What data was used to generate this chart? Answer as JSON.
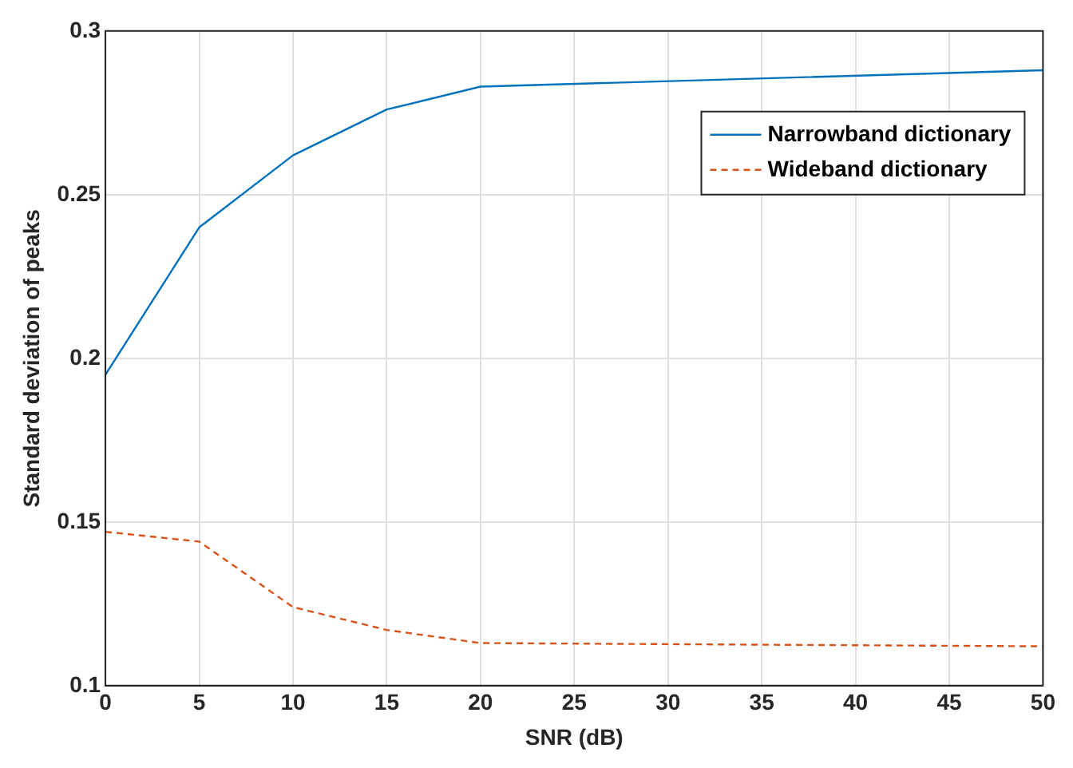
{
  "chart_data": {
    "type": "line",
    "xlabel": "SNR (dB)",
    "ylabel": "Standard deviation of peaks",
    "xlim": [
      0,
      50
    ],
    "xticks": [
      0,
      5,
      10,
      15,
      20,
      25,
      30,
      35,
      40,
      45,
      50
    ],
    "ylim": [
      0.1,
      0.3
    ],
    "yticks": [
      0.1,
      0.15,
      0.2,
      0.25,
      0.3
    ],
    "grid": true,
    "legend": "top right",
    "series": [
      {
        "name": "Narrowband dictionary",
        "color": "#0072bd",
        "line_style": "solid",
        "x": [
          0,
          5,
          10,
          15,
          20,
          50
        ],
        "values": [
          0.195,
          0.24,
          0.262,
          0.276,
          0.283,
          0.288
        ]
      },
      {
        "name": "Wideband dictionary",
        "color": "#d95319",
        "line_style": "dashed",
        "x": [
          0,
          5,
          10,
          15,
          20,
          50
        ],
        "values": [
          0.147,
          0.144,
          0.124,
          0.117,
          0.113,
          0.112
        ]
      }
    ]
  }
}
